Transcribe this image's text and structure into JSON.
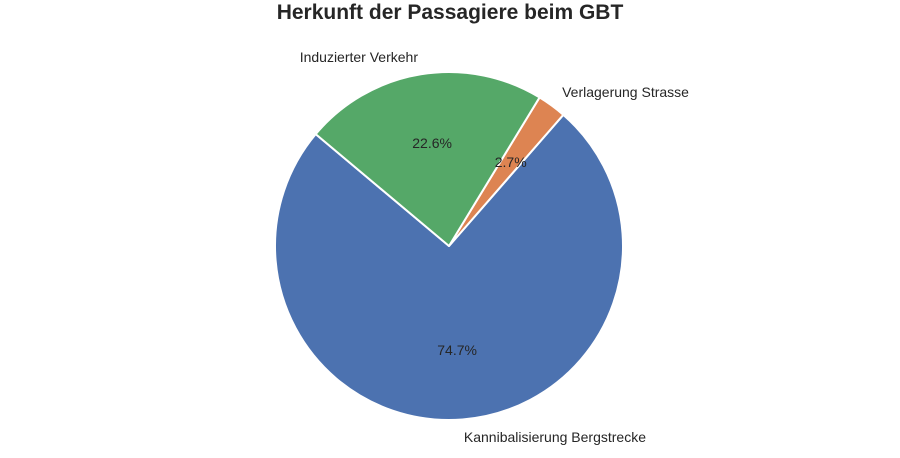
{
  "chart_data": {
    "type": "pie",
    "title": "Herkunft der Passagiere beim GBT",
    "categories": [
      "Kannibalisierung Bergstrecke",
      "Verlagerung Strasse",
      "Induzierter Verkehr"
    ],
    "values": [
      74.7,
      2.7,
      22.6
    ],
    "slices": [
      {
        "label": "Kannibalisierung Bergstrecke",
        "value": 74.7,
        "pct_label": "74.7%",
        "color": "#4C72B0"
      },
      {
        "label": "Verlagerung Strasse",
        "value": 2.7,
        "pct_label": "2.7%",
        "color": "#DD8452"
      },
      {
        "label": "Induzierter Verkehr",
        "value": 22.6,
        "pct_label": "22.6%",
        "color": "#55A868"
      }
    ],
    "start_angle_deg": 140,
    "direction": "counterclockwise",
    "legend_position": "none",
    "wedge_edge_color": "#ffffff",
    "text_color": "#262626",
    "background_color": "#ffffff"
  }
}
